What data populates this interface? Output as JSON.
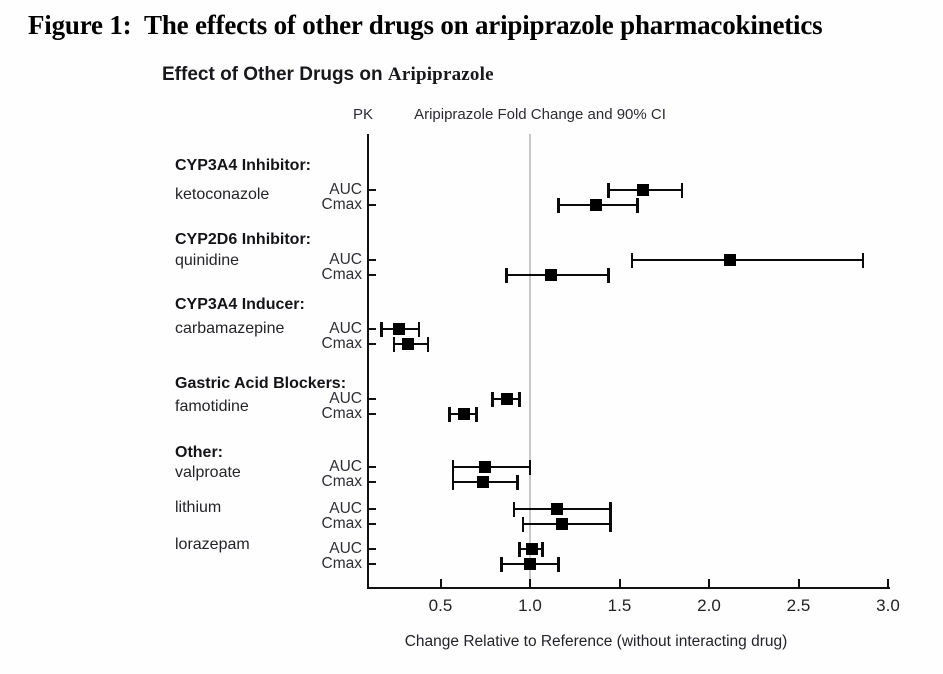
{
  "figure": {
    "title": "Figure 1:  The effects of other drugs on aripiprazole pharmacokinetics"
  },
  "chart_data": {
    "type": "scatter",
    "subtype": "forest-plot-errorbar",
    "title": "Effect of Other Drugs on Aripiprazole",
    "title_bold_part": "Effect of Other Drugs on ",
    "title_serif_part": "Aripiprazole",
    "column_headers": {
      "pk": "PK",
      "value_axis": "Aripiprazole Fold Change and 90% CI"
    },
    "xlabel": "Change Relative to Reference (without interacting drug)",
    "x_ticks": [
      0.5,
      1.0,
      1.5,
      2.0,
      2.5,
      3.0
    ],
    "x_tick_labels": [
      "0.5",
      "1.0",
      "1.5",
      "2.0",
      "2.5",
      "3.0"
    ],
    "xlim": [
      0.1,
      3.01
    ],
    "reference_line_x": 1.0,
    "grid": false,
    "legend": false,
    "groups": [
      {
        "header": "CYP3A4 Inhibitor:",
        "drug": "ketoconazole",
        "rows": [
          {
            "pk": "AUC",
            "value": 1.63,
            "ci_low": 1.44,
            "ci_high": 1.85
          },
          {
            "pk": "Cmax",
            "value": 1.37,
            "ci_low": 1.16,
            "ci_high": 1.6
          }
        ]
      },
      {
        "header": "CYP2D6 Inhibitor:",
        "drug": "quinidine",
        "rows": [
          {
            "pk": "AUC",
            "value": 2.12,
            "ci_low": 1.57,
            "ci_high": 2.86
          },
          {
            "pk": "Cmax",
            "value": 1.12,
            "ci_low": 0.87,
            "ci_high": 1.44
          }
        ]
      },
      {
        "header": "CYP3A4 Inducer:",
        "drug": "carbamazepine",
        "rows": [
          {
            "pk": "AUC",
            "value": 0.27,
            "ci_low": 0.17,
            "ci_high": 0.38
          },
          {
            "pk": "Cmax",
            "value": 0.32,
            "ci_low": 0.24,
            "ci_high": 0.43
          }
        ]
      },
      {
        "header": "Gastric Acid Blockers:",
        "drug": "famotidine",
        "rows": [
          {
            "pk": "AUC",
            "value": 0.87,
            "ci_low": 0.79,
            "ci_high": 0.94
          },
          {
            "pk": "Cmax",
            "value": 0.63,
            "ci_low": 0.55,
            "ci_high": 0.7
          }
        ]
      },
      {
        "header": "Other:",
        "drug": "valproate",
        "rows": [
          {
            "pk": "AUC",
            "value": 0.75,
            "ci_low": 0.57,
            "ci_high": 1.0
          },
          {
            "pk": "Cmax",
            "value": 0.74,
            "ci_low": 0.57,
            "ci_high": 0.93
          }
        ]
      },
      {
        "header": null,
        "drug": "lithium",
        "rows": [
          {
            "pk": "AUC",
            "value": 1.15,
            "ci_low": 0.91,
            "ci_high": 1.45
          },
          {
            "pk": "Cmax",
            "value": 1.18,
            "ci_low": 0.96,
            "ci_high": 1.45
          }
        ]
      },
      {
        "header": null,
        "drug": "lorazepam",
        "rows": [
          {
            "pk": "AUC",
            "value": 1.01,
            "ci_low": 0.94,
            "ci_high": 1.07
          },
          {
            "pk": "Cmax",
            "value": 1.0,
            "ci_low": 0.84,
            "ci_high": 1.16
          }
        ]
      }
    ],
    "colors": {
      "marker": "#000000",
      "error_bar": "#0b0b0b",
      "reference_line": "#c8c8c8",
      "axis": "#111111",
      "text": "#1a1a1a"
    }
  }
}
